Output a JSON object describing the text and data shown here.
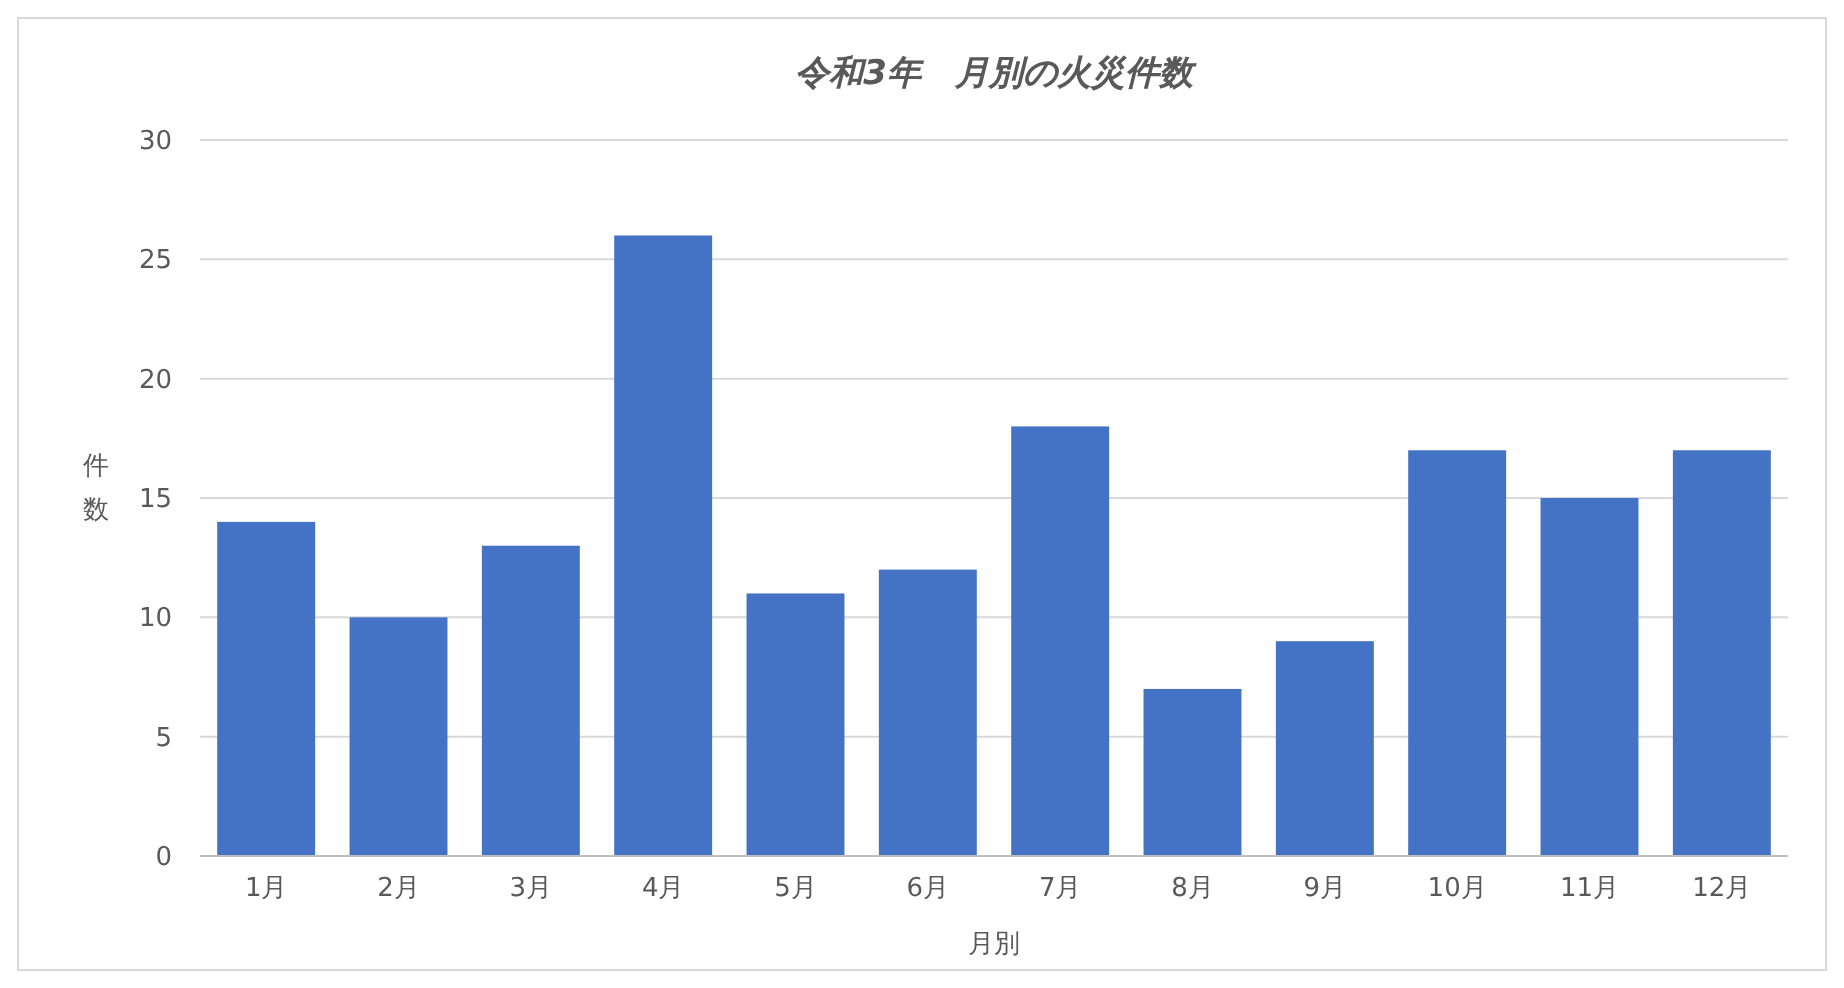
{
  "chart_data": {
    "type": "bar",
    "title": "令和3年　月別の火災件数",
    "xlabel": "月別",
    "ylabel": "件数",
    "categories": [
      "1月",
      "2月",
      "3月",
      "4月",
      "5月",
      "6月",
      "7月",
      "8月",
      "9月",
      "10月",
      "11月",
      "12月"
    ],
    "values": [
      14,
      10,
      13,
      26,
      11,
      12,
      18,
      7,
      9,
      17,
      15,
      17
    ],
    "color": "#4472c4",
    "ylim": [
      0,
      30
    ],
    "yticks": [
      0,
      5,
      10,
      15,
      20,
      25,
      30
    ],
    "grid": "y"
  }
}
